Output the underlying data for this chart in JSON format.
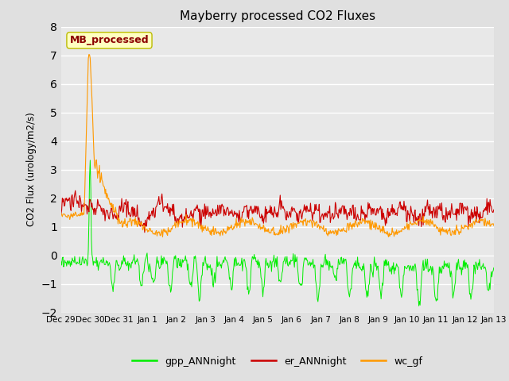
{
  "title": "Mayberry processed CO2 Fluxes",
  "ylabel": "CO2 Flux (urology/m2/s)",
  "ylim": [
    -2.0,
    8.0
  ],
  "yticks": [
    -2.0,
    -1.0,
    0.0,
    1.0,
    2.0,
    3.0,
    4.0,
    5.0,
    6.0,
    7.0,
    8.0
  ],
  "fig_bg_color": "#e0e0e0",
  "plot_bg_color": "#e8e8e8",
  "watermark_text": "MB_processed",
  "watermark_color": "#8b0000",
  "watermark_bg": "#ffffc0",
  "series": [
    "gpp_ANNnight",
    "er_ANNnight",
    "wc_gf"
  ],
  "colors": [
    "#00ee00",
    "#cc0000",
    "#ff9900"
  ],
  "n_points": 700,
  "xtick_labels": [
    "Dec 29",
    "Dec 30",
    "Dec 31",
    "Jan 1",
    "Jan 2",
    "Jan 3",
    "Jan 4",
    "Jan 5",
    "Jan 6",
    "Jan 7",
    "Jan 8",
    "Jan 9",
    "Jan 10",
    "Jan 11",
    "Jan 12",
    "Jan 13"
  ],
  "xtick_positions": [
    0,
    1,
    2,
    3,
    4,
    5,
    6,
    7,
    8,
    9,
    10,
    11,
    12,
    13,
    14,
    15
  ]
}
